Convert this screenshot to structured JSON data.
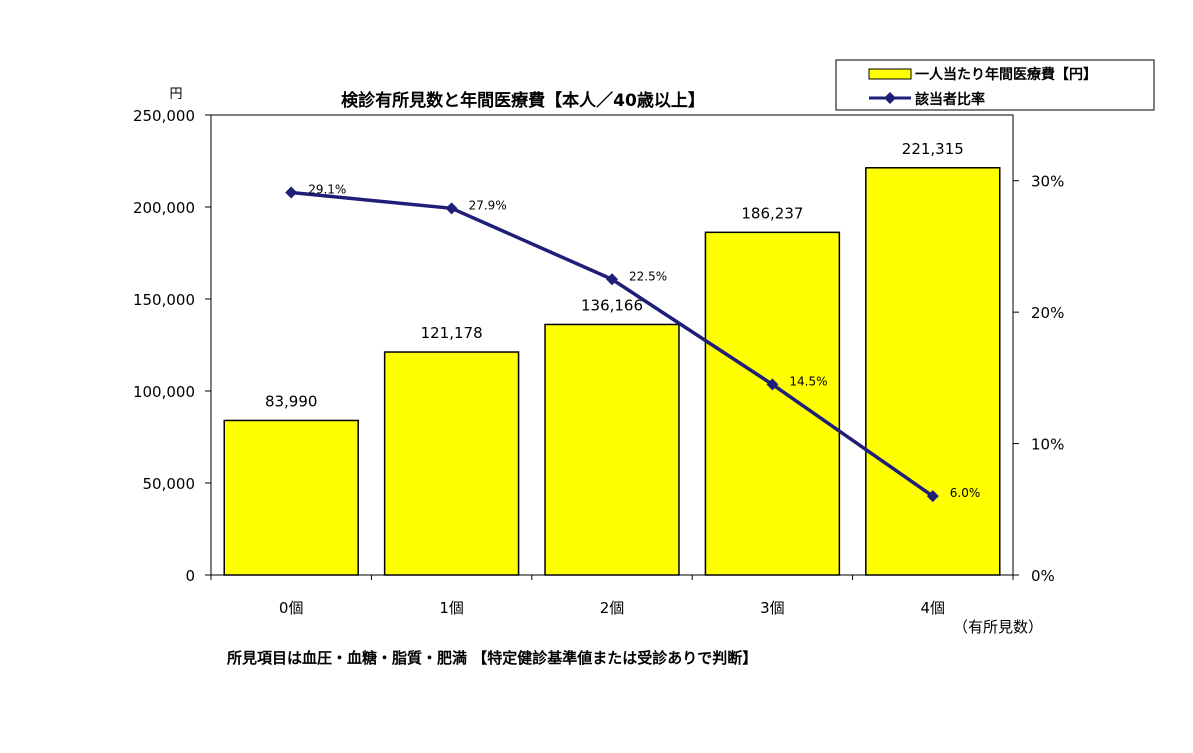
{
  "chart_data": {
    "type": "bar",
    "title": "検診有所見数と年間医療費【本人／40歳以上】",
    "categories": [
      "0個",
      "1個",
      "2個",
      "3個",
      "4個"
    ],
    "xlabel": "（有所見数）",
    "y_unit": "円",
    "ylim": [
      0,
      250000
    ],
    "y_ticks": [
      "0",
      "50,000",
      "100,000",
      "150,000",
      "200,000",
      "250,000"
    ],
    "y2lim": [
      0,
      35
    ],
    "y2_ticks": [
      "0%",
      "10%",
      "20%",
      "30%"
    ],
    "series": [
      {
        "name": "一人当たり年間医療費【円】",
        "type": "bar",
        "axis": "left",
        "color": "#ffff00",
        "values": [
          83990,
          121178,
          136166,
          186237,
          221315
        ],
        "labels": [
          "83,990",
          "121,178",
          "136,166",
          "186,237",
          "221,315"
        ]
      },
      {
        "name": "該当者比率",
        "type": "line",
        "axis": "right",
        "color": "#1f1f7a",
        "marker": "diamond",
        "values": [
          29.1,
          27.9,
          22.5,
          14.5,
          6.0
        ],
        "labels": [
          "29.1%",
          "27.9%",
          "22.5%",
          "14.5%",
          "6.0%"
        ]
      }
    ],
    "legend_position": "top-right",
    "footnote": "所見項目は血圧・血糖・脂質・肥満 【特定健診基準値または受診ありで判断】",
    "grid": false
  }
}
